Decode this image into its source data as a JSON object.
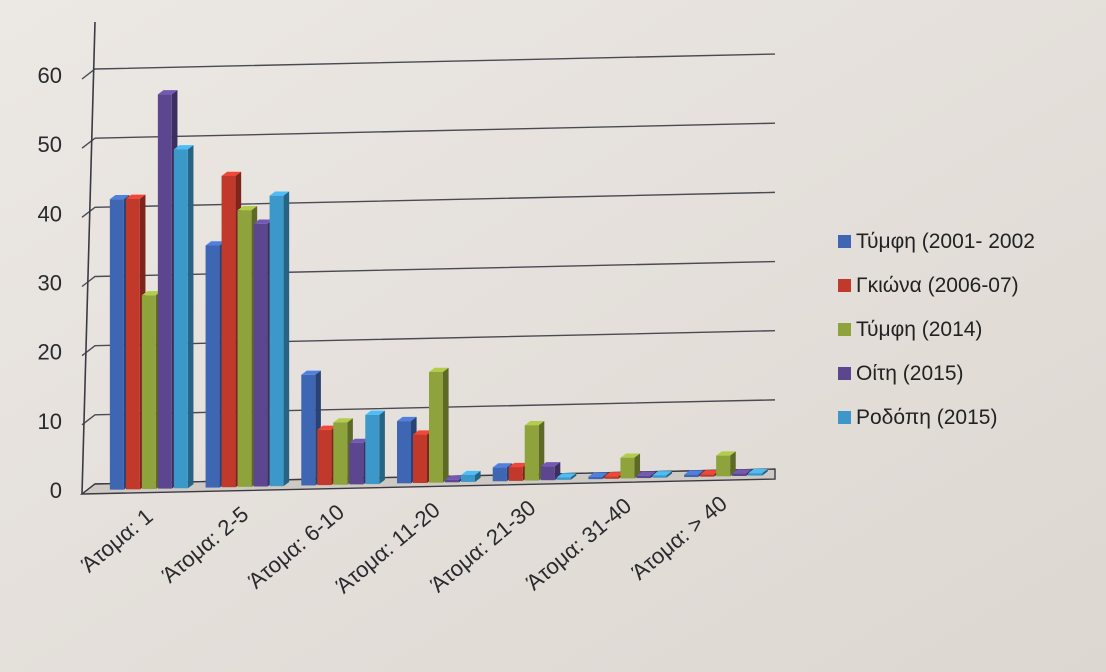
{
  "chart_data": {
    "type": "bar",
    "categories": [
      "Άτομα: 1",
      "Άτομα: 2-5",
      "Άτομα: 6-10",
      "Άτομα: 11-20",
      "Άτομα: 21-30",
      "Άτομα: 31-40",
      "Άτομα: > 40"
    ],
    "series": [
      {
        "name": "Τύμφη (2001- 2002",
        "color": "#3f66b3",
        "values": [
          42,
          35,
          16,
          9,
          2,
          0,
          0
        ]
      },
      {
        "name": "Γκιώνα (2006-07)",
        "color": "#c0392b",
        "values": [
          42,
          45,
          8,
          7,
          2,
          0,
          0
        ]
      },
      {
        "name": "Τύμφη (2014)",
        "color": "#8fa33c",
        "values": [
          28,
          40,
          9,
          16,
          8,
          3,
          3
        ]
      },
      {
        "name": "Οίτη (2015)",
        "color": "#5c4690",
        "values": [
          57,
          38,
          6,
          0,
          2,
          0,
          0
        ]
      },
      {
        "name": "Ροδόπη (2015)",
        "color": "#3c98c8",
        "values": [
          49,
          42,
          10,
          1,
          0,
          0,
          0
        ]
      }
    ],
    "yticks": [
      "0",
      "10",
      "20",
      "30",
      "40",
      "50",
      "60"
    ],
    "ylim": [
      0,
      60
    ],
    "grid": true,
    "legend_position": "right"
  }
}
